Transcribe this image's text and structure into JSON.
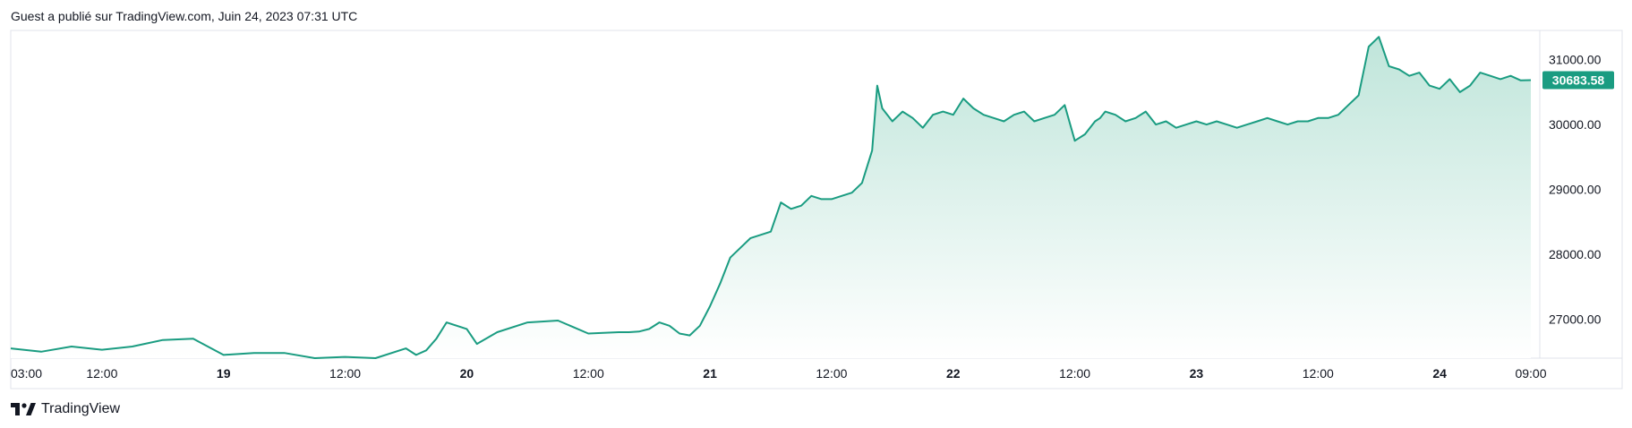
{
  "header": {
    "published_by": "Guest a publié sur TradingView.com, Juin 24, 2023 07:31 UTC"
  },
  "footer": {
    "brand": "TradingView"
  },
  "colors": {
    "line": "#1a9c81",
    "fill_top": "#bfe5da",
    "badge": "#1a9c81",
    "border": "#e0e3eb",
    "axis_text": "#131722"
  },
  "chart_data": {
    "type": "area",
    "title": "",
    "xlabel": "",
    "ylabel": "",
    "ylim": [
      26400,
      31450
    ],
    "grid": false,
    "last_price_label": "30683.58",
    "y_ticks": [
      27000,
      28000,
      29000,
      30000,
      31000
    ],
    "y_tick_labels": [
      "27000.00",
      "28000.00",
      "29000.00",
      "30000.00",
      "31000.00"
    ],
    "x_ticks": [
      "03:00",
      "12:00",
      "19",
      "12:00",
      "20",
      "12:00",
      "21",
      "12:00",
      "22",
      "12:00",
      "23",
      "12:00",
      "24",
      "09:00"
    ],
    "x_tick_bold": [
      false,
      false,
      true,
      false,
      true,
      false,
      true,
      false,
      true,
      false,
      true,
      false,
      true,
      false
    ],
    "x_tick_hours": [
      0,
      9,
      21,
      33,
      45,
      57,
      69,
      81,
      93,
      105,
      117,
      129,
      141,
      150
    ],
    "series": [
      {
        "x_hours": [
          0,
          3,
          6,
          9,
          12,
          15,
          18,
          21,
          24,
          27,
          30,
          33,
          36,
          39,
          40,
          41,
          42,
          43,
          45,
          46,
          48,
          51,
          54,
          57,
          60,
          61,
          62,
          63,
          64,
          65,
          66,
          67,
          68,
          69,
          70,
          71,
          72,
          73,
          74,
          75,
          76,
          77,
          78,
          79,
          80,
          81,
          82,
          83,
          84,
          85,
          85.5,
          86,
          87,
          88,
          89,
          90,
          91,
          92,
          93,
          94,
          95,
          96,
          97,
          98,
          99,
          100,
          101,
          102,
          103,
          104,
          105,
          106,
          107,
          107.5,
          108,
          109,
          110,
          111,
          112,
          113,
          114,
          115,
          116,
          117,
          118,
          119,
          120,
          121,
          122,
          123,
          124,
          125,
          126,
          127,
          128,
          129,
          130,
          131,
          132,
          133,
          134,
          135,
          136,
          137,
          138,
          139,
          140,
          141,
          142,
          143,
          144,
          145,
          146,
          147,
          148,
          149,
          150
        ],
        "values": [
          26550,
          26500,
          26580,
          26530,
          26580,
          26680,
          26700,
          26450,
          26480,
          26480,
          26400,
          26420,
          26400,
          26550,
          26450,
          26520,
          26700,
          26950,
          26850,
          26620,
          26800,
          26950,
          26980,
          26780,
          26800,
          26800,
          26810,
          26850,
          26950,
          26900,
          26780,
          26750,
          26900,
          27200,
          27550,
          27950,
          28100,
          28250,
          28300,
          28350,
          28800,
          28700,
          28750,
          28900,
          28850,
          28850,
          28900,
          28950,
          29100,
          29600,
          30600,
          30250,
          30050,
          30200,
          30100,
          29950,
          30150,
          30200,
          30150,
          30400,
          30250,
          30150,
          30100,
          30050,
          30150,
          30200,
          30050,
          30100,
          30150,
          30300,
          29750,
          29850,
          30050,
          30100,
          30200,
          30150,
          30050,
          30100,
          30200,
          30000,
          30050,
          29950,
          30000,
          30050,
          30000,
          30050,
          30000,
          29950,
          30000,
          30050,
          30100,
          30050,
          30000,
          30050,
          30050,
          30100,
          30100,
          30150,
          30300,
          30450,
          31200,
          31350,
          30900,
          30850,
          30750,
          30800,
          30600,
          30550,
          30700,
          30500,
          30600,
          30800,
          30750,
          30700,
          30750,
          30680,
          30683.58
        ]
      }
    ]
  }
}
